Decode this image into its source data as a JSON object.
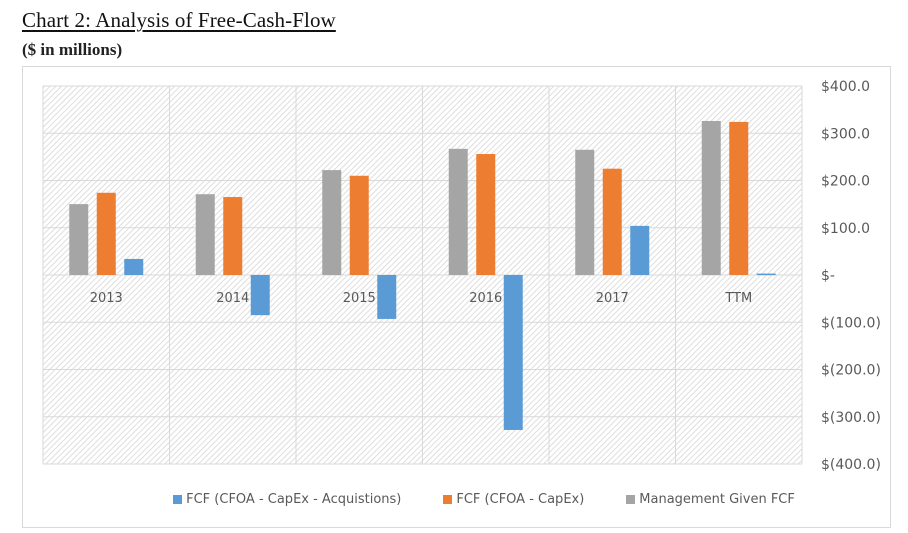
{
  "header": {
    "title": "Chart 2: Analysis of Free-Cash-Flow",
    "subtitle": "($ in millions)"
  },
  "chart_data": {
    "type": "bar",
    "title": "Chart 2: Analysis of Free-Cash-Flow",
    "subtitle": "($ in millions)",
    "xlabel": "",
    "ylabel": "",
    "categories": [
      "2013",
      "2014",
      "2015",
      "2016",
      "2017",
      "TTM"
    ],
    "series": [
      {
        "name": "Management Given FCF",
        "color": "#a5a5a5",
        "values": [
          150,
          171,
          222,
          267,
          265,
          326
        ]
      },
      {
        "name": "FCF (CFOA - CapEx)",
        "color": "#ed7d31",
        "values": [
          174,
          165,
          210,
          256,
          225,
          324
        ]
      },
      {
        "name": "FCF (CFOA - CapEx - Acquistions)",
        "color": "#5b9bd5",
        "values": [
          34,
          -85,
          -93,
          -328,
          104,
          3
        ]
      }
    ],
    "ylim": [
      -400,
      400
    ],
    "yticks": [
      400,
      300,
      200,
      100,
      0,
      -100,
      -200,
      -300,
      -400
    ],
    "ytick_labels": [
      "$400.0",
      "$300.0",
      "$200.0",
      "$100.0",
      "$-",
      "$(100.0)",
      "$(200.0)",
      "$(300.0)",
      "$(400.0)"
    ],
    "yaxis_side": "right",
    "grid": true,
    "plot_background": "hatched",
    "legend": {
      "position": "bottom",
      "entries": [
        {
          "label": "FCF (CFOA - CapEx - Acquistions)",
          "color": "#5b9bd5"
        },
        {
          "label": "FCF (CFOA - CapEx)",
          "color": "#ed7d31"
        },
        {
          "label": "Management Given FCF",
          "color": "#a5a5a5"
        }
      ]
    }
  }
}
